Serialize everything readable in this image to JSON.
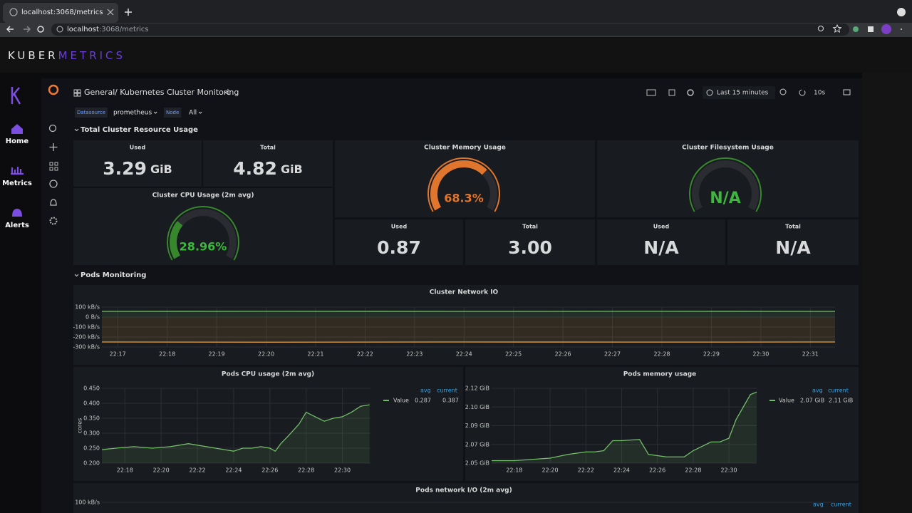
{
  "browser": {
    "tab_title": "localhost:3068/metrics",
    "url_host": "localhost",
    "url_path": ":3068/metrics"
  },
  "app": {
    "brand_main": "KUBER",
    "brand_accent": "METRICS",
    "nav": [
      "Home",
      "Metrics",
      "Alerts"
    ]
  },
  "dashboard": {
    "folder": "General",
    "title": "/ Kubernetes Cluster Monitoring",
    "time_range": "Last 15 minutes",
    "refresh": "10s",
    "variables": [
      {
        "label": "Datasource",
        "value": "prometheus"
      },
      {
        "label": "Node",
        "value": "All"
      }
    ],
    "rows": [
      "Total Cluster Resource Usage",
      "Pods Monitoring"
    ]
  },
  "stats": [
    {
      "label": "Used",
      "value": "3.29",
      "unit": "GiB"
    },
    {
      "label": "Total",
      "value": "4.82",
      "unit": "GiB"
    },
    {
      "label": "Used",
      "value": "0.87"
    },
    {
      "label": "Total",
      "value": "3.00"
    },
    {
      "label": "Used",
      "value": "N/A"
    },
    {
      "label": "Total",
      "value": "N/A"
    }
  ],
  "gauges": [
    {
      "title": "Cluster Memory Usage",
      "value": 68.3,
      "value_label": "68.3%",
      "color": "#e0752d",
      "range": [
        0,
        100
      ]
    },
    {
      "title": "Cluster CPU Usage (2m avg)",
      "value": 28.96,
      "value_label": "28.96%",
      "color": "#37872d",
      "range": [
        0,
        100
      ]
    },
    {
      "title": "Cluster Filesystem Usage",
      "value": null,
      "value_label": "N/A",
      "color": "#37872d",
      "range": [
        0,
        100
      ]
    }
  ],
  "panels": [
    {
      "title": "Cluster Network IO",
      "xlim": [
        16.68,
        31.5
      ],
      "xticks": [
        {
          "value": 17,
          "label": "22:17"
        },
        {
          "value": 18,
          "label": "22:18"
        },
        {
          "value": 19,
          "label": "22:19"
        },
        {
          "value": 20,
          "label": "22:20"
        },
        {
          "value": 21,
          "label": "22:21"
        },
        {
          "value": 22,
          "label": "22:22"
        },
        {
          "value": 23,
          "label": "22:23"
        },
        {
          "value": 24,
          "label": "22:24"
        },
        {
          "value": 25,
          "label": "22:25"
        },
        {
          "value": 26,
          "label": "22:26"
        },
        {
          "value": 27,
          "label": "22:27"
        },
        {
          "value": 28,
          "label": "22:28"
        },
        {
          "value": 29,
          "label": "22:29"
        },
        {
          "value": 30,
          "label": "22:30"
        },
        {
          "value": 31,
          "label": "22:31"
        }
      ],
      "ylim": [
        -300,
        100
      ],
      "yticks": [
        {
          "value": 100,
          "label": "100 kB/s"
        },
        {
          "value": 0,
          "label": "0 B/s"
        },
        {
          "value": -100,
          "label": "-100 kB/s"
        },
        {
          "value": -200,
          "label": "-200 kB/s"
        },
        {
          "value": -300,
          "label": "-300 kB/s"
        }
      ],
      "series": [
        {
          "color": "#73bf69",
          "x": [
            16.68,
            20,
            24,
            28,
            31.5
          ],
          "values": [
            57,
            58,
            57,
            58,
            57
          ]
        },
        {
          "color": "#e8a33a",
          "x": [
            16.68,
            20,
            24,
            28,
            31.5
          ],
          "values": [
            -250,
            -252,
            -250,
            -251,
            -250
          ]
        }
      ]
    },
    {
      "title": "Pods CPU usage (2m avg)",
      "y_label": "cores",
      "xlim": [
        16.73,
        31.55
      ],
      "xticks": [
        {
          "value": 18,
          "label": "22:18"
        },
        {
          "value": 20,
          "label": "22:20"
        },
        {
          "value": 22,
          "label": "22:22"
        },
        {
          "value": 24,
          "label": "22:24"
        },
        {
          "value": 26,
          "label": "22:26"
        },
        {
          "value": 28,
          "label": "22:28"
        },
        {
          "value": 30,
          "label": "22:30"
        }
      ],
      "ylim": [
        0.2,
        0.45
      ],
      "yticks": [
        {
          "value": 0.2,
          "label": "0.200"
        },
        {
          "value": 0.25,
          "label": "0.250"
        },
        {
          "value": 0.3,
          "label": "0.300"
        },
        {
          "value": 0.35,
          "label": "0.350"
        },
        {
          "value": 0.4,
          "label": "0.400"
        },
        {
          "value": 0.45,
          "label": "0.450"
        }
      ],
      "legend": {
        "headers": [
          "avg",
          "current"
        ],
        "name": "Value",
        "values": [
          "0.287",
          "0.387"
        ]
      },
      "series": [
        {
          "color": "#73bf69",
          "x": [
            16.73,
            17.5,
            18.5,
            19.5,
            20.5,
            21,
            21.5,
            22.5,
            23,
            23.5,
            24,
            24.5,
            25,
            25.5,
            26,
            26.3,
            26.6,
            27,
            27.3,
            27.6,
            28,
            28.5,
            29,
            29.5,
            30,
            30.5,
            31,
            31.5
          ],
          "values": [
            0.245,
            0.25,
            0.255,
            0.25,
            0.255,
            0.26,
            0.265,
            0.255,
            0.25,
            0.245,
            0.24,
            0.25,
            0.25,
            0.255,
            0.25,
            0.24,
            0.265,
            0.29,
            0.31,
            0.33,
            0.37,
            0.355,
            0.34,
            0.35,
            0.355,
            0.37,
            0.39,
            0.395
          ]
        }
      ]
    },
    {
      "title": "Pods memory usage",
      "xlim": [
        16.73,
        31.55
      ],
      "xticks": [
        {
          "value": 18,
          "label": "22:18"
        },
        {
          "value": 20,
          "label": "22:20"
        },
        {
          "value": 22,
          "label": "22:22"
        },
        {
          "value": 24,
          "label": "22:24"
        },
        {
          "value": 26,
          "label": "22:26"
        },
        {
          "value": 28,
          "label": "22:28"
        },
        {
          "value": 30,
          "label": "22:30"
        }
      ],
      "ylim": [
        2.055,
        2.115
      ],
      "yticks": [
        {
          "value": 2.055,
          "label": "2.05 GiB"
        },
        {
          "value": 2.07,
          "label": "2.07 GiB"
        },
        {
          "value": 2.085,
          "label": "2.09 GiB"
        },
        {
          "value": 2.1,
          "label": "2.10 GiB"
        },
        {
          "value": 2.115,
          "label": "2.12 GiB"
        }
      ],
      "legend": {
        "headers": [
          "avg",
          "current"
        ],
        "name": "Value",
        "values": [
          "2.07 GiB",
          "2.11 GiB"
        ]
      },
      "series": [
        {
          "color": "#73bf69",
          "x": [
            16.73,
            18,
            19,
            20,
            21,
            22,
            22.5,
            23,
            23.5,
            24,
            25,
            25.5,
            26.5,
            27.5,
            28,
            29,
            29.5,
            30,
            30.4,
            30.8,
            31.2,
            31.55
          ],
          "values": [
            2.057,
            2.057,
            2.058,
            2.059,
            2.062,
            2.064,
            2.064,
            2.065,
            2.073,
            2.073,
            2.074,
            2.062,
            2.06,
            2.06,
            2.065,
            2.072,
            2.072,
            2.075,
            2.09,
            2.1,
            2.11,
            2.112
          ]
        }
      ]
    },
    {
      "title": "Pods network I/O (2m avg)",
      "yticks": [
        {
          "value": 100,
          "label": "100 kB/s"
        }
      ],
      "legend": {
        "headers": [
          "avg",
          "current"
        ]
      }
    }
  ]
}
